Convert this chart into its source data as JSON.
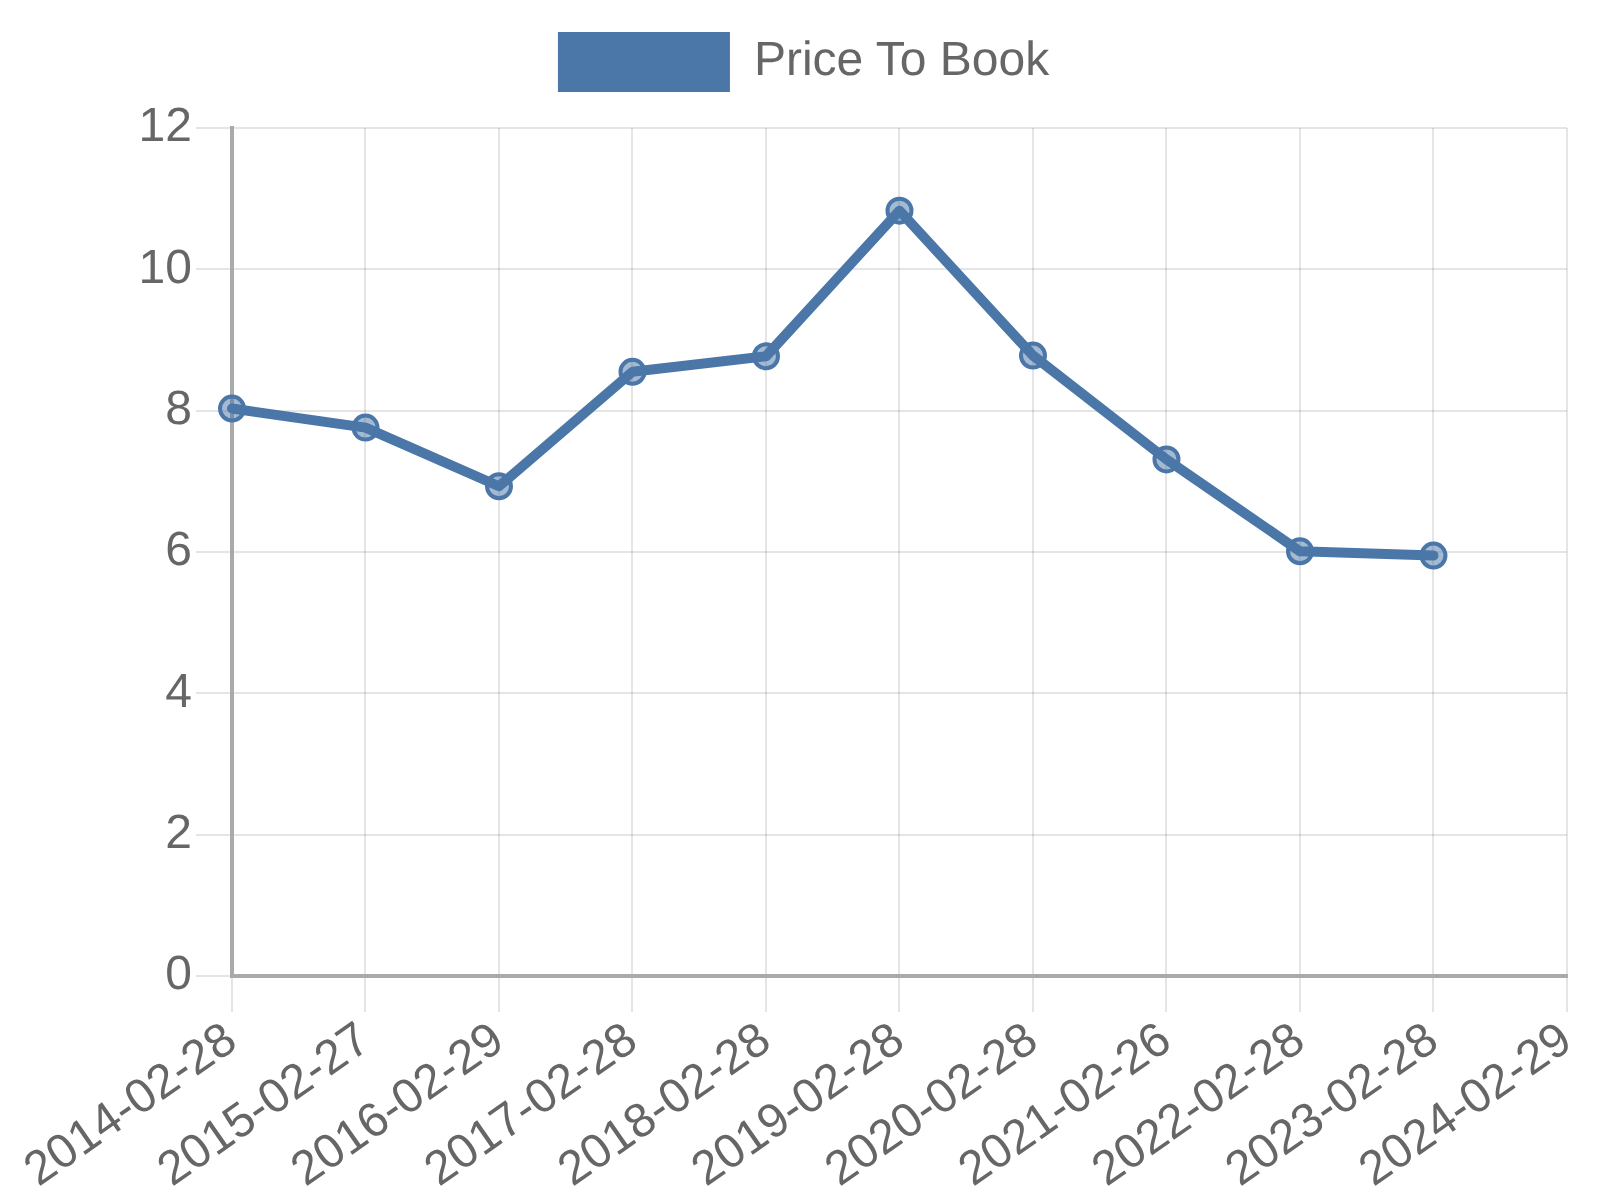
{
  "chart_data": {
    "type": "line",
    "categories": [
      "2014-02-28",
      "2015-02-27",
      "2016-02-29",
      "2017-02-28",
      "2018-02-28",
      "2019-02-28",
      "2020-02-28",
      "2021-02-26",
      "2022-02-28",
      "2023-02-28",
      "2024-02-29"
    ],
    "series": [
      {
        "name": "Price To Book",
        "color": "#4a76a8",
        "values": [
          8.03,
          7.76,
          6.93,
          8.55,
          8.77,
          10.83,
          8.78,
          7.31,
          6.01,
          5.95,
          null
        ]
      }
    ],
    "ylim": [
      0,
      12
    ],
    "yticks": [
      0,
      2,
      4,
      6,
      8,
      10,
      12
    ],
    "grid": true,
    "legend": "top",
    "marker": "circle",
    "line_style": "solid"
  }
}
